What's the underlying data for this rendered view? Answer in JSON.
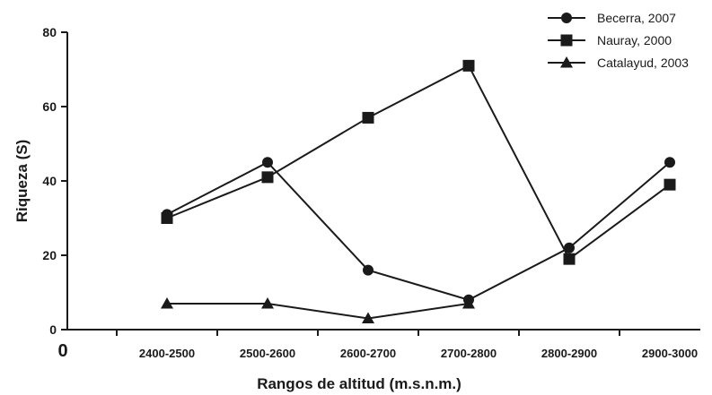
{
  "chart_data": {
    "type": "line",
    "title": "",
    "xlabel": "Rangos de altitud (m.s.n.m.)",
    "ylabel": "Riqueza (S)",
    "origin_label": "0",
    "categories": [
      "2400-2500",
      "2500-2600",
      "2600-2700",
      "2700-2800",
      "2800-2900",
      "2900-3000"
    ],
    "ylim": [
      0,
      80
    ],
    "yticks": [
      "0",
      "20",
      "40",
      "60",
      "80"
    ],
    "grid": false,
    "legend_position": "top-right",
    "series": [
      {
        "name": "Becerra, 2007",
        "marker": "circle",
        "values": [
          31,
          45,
          16,
          8,
          22,
          45
        ]
      },
      {
        "name": "Nauray, 2000",
        "marker": "square",
        "values": [
          30,
          41,
          57,
          71,
          19,
          39
        ]
      },
      {
        "name": "Catalayud, 2003",
        "marker": "triangle",
        "values": [
          7,
          7,
          3,
          7,
          null,
          null
        ]
      }
    ],
    "line_color": "#1a1a1a"
  }
}
